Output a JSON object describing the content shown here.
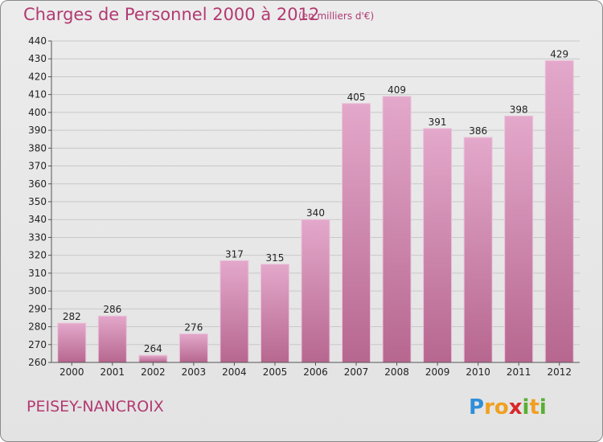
{
  "page": {
    "title": "Charges de Personnel 2000 à 2012",
    "subtitle": "(en milliers d'€)",
    "location": "PEISEY-NANCROIX",
    "logo_text": "Proxiti"
  },
  "colors": {
    "title": "#b23a72",
    "bar_top": "#e3a8cb",
    "bar_bottom": "#b7678f",
    "grid": "#c8c8c8"
  },
  "chart_data": {
    "type": "bar",
    "title": "Charges de Personnel 2000 à 2012",
    "subtitle": "(en milliers d'€)",
    "categories": [
      "2000",
      "2001",
      "2002",
      "2003",
      "2004",
      "2005",
      "2006",
      "2007",
      "2008",
      "2009",
      "2010",
      "2011",
      "2012"
    ],
    "values": [
      282,
      286,
      264,
      276,
      317,
      315,
      340,
      405,
      409,
      391,
      386,
      398,
      429
    ],
    "ylim": [
      260,
      440
    ],
    "ytick_step": 10,
    "grid": true,
    "legend": "none"
  }
}
